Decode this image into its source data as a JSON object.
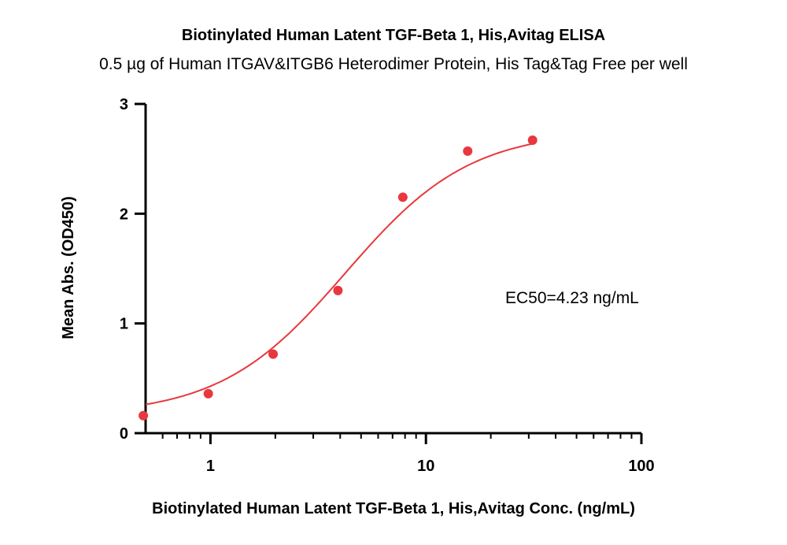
{
  "chart_data": {
    "type": "scatter",
    "title": "Biotinylated Human Latent TGF-Beta 1, His,Avitag ELISA",
    "subtitle": "0.5 µg of Human ITGAV&ITGB6 Heterodimer Protein, His Tag&Tag Free per well",
    "xlabel": "Biotinylated Human Latent TGF-Beta 1, His,Avitag Conc. (ng/mL)",
    "ylabel": "Mean Abs. (OD450)",
    "x_scale": "log",
    "xlim": [
      0.5,
      100
    ],
    "ylim": [
      0,
      3
    ],
    "x_ticks": [
      1,
      10,
      100
    ],
    "x_tick_labels": [
      "1",
      "10",
      "100"
    ],
    "y_ticks": [
      0,
      1,
      2,
      3
    ],
    "y_tick_labels": [
      "0",
      "1",
      "2",
      "3"
    ],
    "grid": false,
    "annotation": "EC50=4.23 ng/mL",
    "colors": {
      "series": "#e8383d",
      "axis": "#000000"
    },
    "series": [
      {
        "x": [
          0.488,
          0.977,
          1.953,
          3.906,
          7.813,
          15.625,
          31.25
        ],
        "y": [
          0.16,
          0.36,
          0.72,
          1.3,
          2.15,
          2.57,
          2.67
        ],
        "fit": {
          "model": "4PL",
          "bottom": 0.16,
          "top": 2.76,
          "ec50": 4.23,
          "hill": 1.5
        }
      }
    ]
  }
}
